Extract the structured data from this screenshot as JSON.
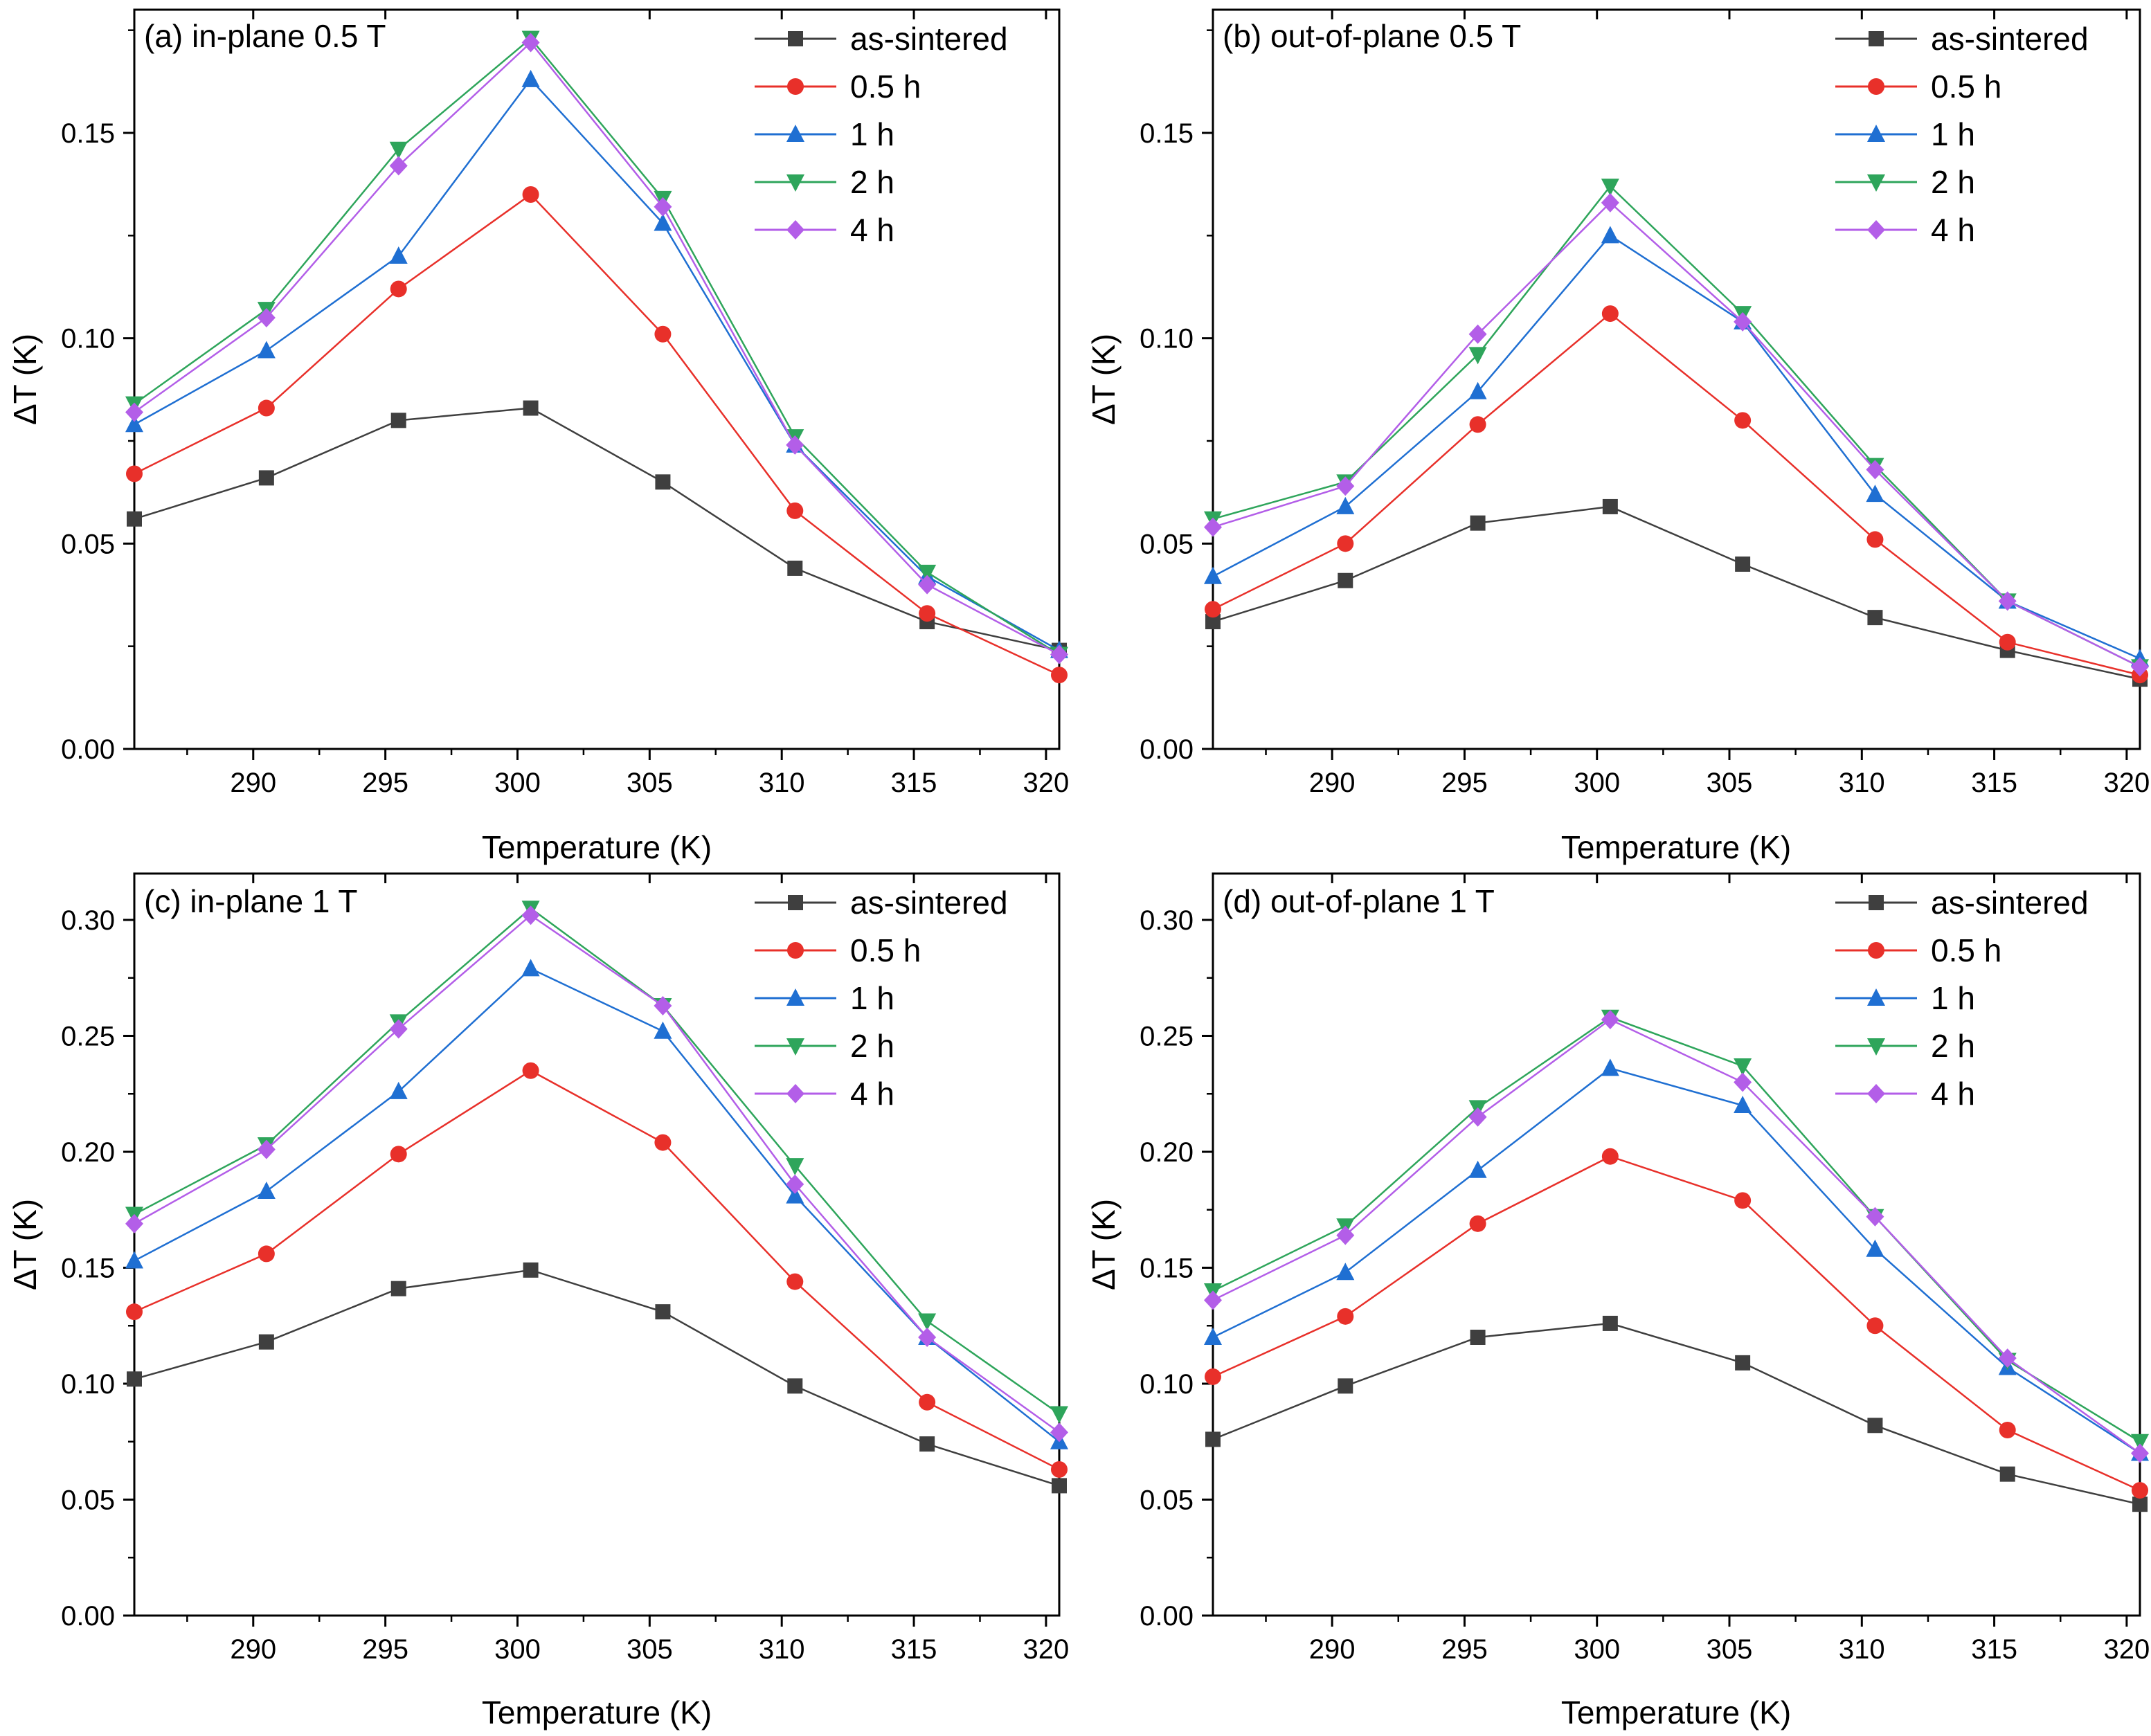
{
  "chart_data": [
    {
      "type": "line",
      "title": "(a) in-plane 0.5 T",
      "xlabel": "Temperature (K)",
      "ylabel": "ΔT (K)",
      "xlim": [
        285.5,
        320.5
      ],
      "ylim": [
        0,
        0.18
      ],
      "xticks": [
        290,
        295,
        300,
        305,
        310,
        315,
        320
      ],
      "xtick_labels": [
        "290",
        "295",
        "300",
        "305",
        "310",
        "315",
        "320"
      ],
      "yticks": [
        0,
        0.05,
        0.1,
        0.15
      ],
      "ytick_labels": [
        "0.00",
        "0.05",
        "0.10",
        "0.15"
      ],
      "legend_position": "top-right",
      "x": [
        285.5,
        290.5,
        295.5,
        300.5,
        305.5,
        310.5,
        315.5,
        320.5
      ],
      "series": [
        {
          "name": "as-sintered",
          "values": [
            0.056,
            0.066,
            0.08,
            0.083,
            0.065,
            0.044,
            0.031,
            0.024
          ]
        },
        {
          "name": "0.5 h",
          "values": [
            0.067,
            0.083,
            0.112,
            0.135,
            0.101,
            0.058,
            0.033,
            0.018
          ]
        },
        {
          "name": "1 h",
          "values": [
            0.079,
            0.097,
            0.12,
            0.163,
            0.128,
            0.074,
            0.042,
            0.024
          ]
        },
        {
          "name": "2 h",
          "values": [
            0.084,
            0.107,
            0.146,
            0.173,
            0.134,
            0.076,
            0.043,
            0.023
          ]
        },
        {
          "name": "4 h",
          "values": [
            0.082,
            0.105,
            0.142,
            0.172,
            0.132,
            0.074,
            0.04,
            0.023
          ]
        }
      ]
    },
    {
      "type": "line",
      "title": "(b) out-of-plane 0.5 T",
      "xlabel": "Temperature (K)",
      "ylabel": "ΔT (K)",
      "xlim": [
        285.5,
        320.5
      ],
      "ylim": [
        0,
        0.18
      ],
      "xticks": [
        290,
        295,
        300,
        305,
        310,
        315,
        320
      ],
      "xtick_labels": [
        "290",
        "295",
        "300",
        "305",
        "310",
        "315",
        "320"
      ],
      "yticks": [
        0,
        0.05,
        0.1,
        0.15
      ],
      "ytick_labels": [
        "0.00",
        "0.05",
        "0.10",
        "0.15"
      ],
      "legend_position": "top-right",
      "x": [
        285.5,
        290.5,
        295.5,
        300.5,
        305.5,
        310.5,
        315.5,
        320.5
      ],
      "series": [
        {
          "name": "as-sintered",
          "values": [
            0.031,
            0.041,
            0.055,
            0.059,
            0.045,
            0.032,
            0.024,
            0.017
          ]
        },
        {
          "name": "0.5 h",
          "values": [
            0.034,
            0.05,
            0.079,
            0.106,
            0.08,
            0.051,
            0.026,
            0.018
          ]
        },
        {
          "name": "1 h",
          "values": [
            0.042,
            0.059,
            0.087,
            0.125,
            0.104,
            0.062,
            0.036,
            0.022
          ]
        },
        {
          "name": "2 h",
          "values": [
            0.056,
            0.065,
            0.096,
            0.137,
            0.106,
            0.069,
            0.036,
            0.02
          ]
        },
        {
          "name": "4 h",
          "values": [
            0.054,
            0.064,
            0.101,
            0.133,
            0.104,
            0.068,
            0.036,
            0.02
          ]
        }
      ]
    },
    {
      "type": "line",
      "title": "(c) in-plane 1 T",
      "xlabel": "Temperature (K)",
      "ylabel": "ΔT (K)",
      "xlim": [
        285.5,
        320.5
      ],
      "ylim": [
        0,
        0.32
      ],
      "xticks": [
        290,
        295,
        300,
        305,
        310,
        315,
        320
      ],
      "xtick_labels": [
        "290",
        "295",
        "300",
        "305",
        "310",
        "315",
        "320"
      ],
      "yticks": [
        0,
        0.05,
        0.1,
        0.15,
        0.2,
        0.25,
        0.3
      ],
      "ytick_labels": [
        "0.00",
        "0.05",
        "0.10",
        "0.15",
        "0.20",
        "0.25",
        "0.30"
      ],
      "legend_position": "top-right",
      "x": [
        285.5,
        290.5,
        295.5,
        300.5,
        305.5,
        310.5,
        315.5,
        320.5
      ],
      "series": [
        {
          "name": "as-sintered",
          "values": [
            0.102,
            0.118,
            0.141,
            0.149,
            0.131,
            0.099,
            0.074,
            0.056
          ]
        },
        {
          "name": "0.5 h",
          "values": [
            0.131,
            0.156,
            0.199,
            0.235,
            0.204,
            0.144,
            0.092,
            0.063
          ]
        },
        {
          "name": "1 h",
          "values": [
            0.153,
            0.183,
            0.226,
            0.279,
            0.252,
            0.181,
            0.12,
            0.075
          ]
        },
        {
          "name": "2 h",
          "values": [
            0.173,
            0.203,
            0.256,
            0.305,
            0.263,
            0.194,
            0.127,
            0.087
          ]
        },
        {
          "name": "4 h",
          "values": [
            0.169,
            0.201,
            0.253,
            0.302,
            0.263,
            0.186,
            0.12,
            0.079
          ]
        }
      ]
    },
    {
      "type": "line",
      "title": "(d) out-of-plane 1 T",
      "xlabel": "Temperature (K)",
      "ylabel": "ΔT (K)",
      "xlim": [
        285.5,
        320.5
      ],
      "ylim": [
        0,
        0.32
      ],
      "xticks": [
        290,
        295,
        300,
        305,
        310,
        315,
        320
      ],
      "xtick_labels": [
        "290",
        "295",
        "300",
        "305",
        "310",
        "315",
        "320"
      ],
      "yticks": [
        0,
        0.05,
        0.1,
        0.15,
        0.2,
        0.25,
        0.3
      ],
      "ytick_labels": [
        "0.00",
        "0.05",
        "0.10",
        "0.15",
        "0.20",
        "0.25",
        "0.30"
      ],
      "legend_position": "top-right",
      "x": [
        285.5,
        290.5,
        295.5,
        300.5,
        305.5,
        310.5,
        315.5,
        320.5
      ],
      "series": [
        {
          "name": "as-sintered",
          "values": [
            0.076,
            0.099,
            0.12,
            0.126,
            0.109,
            0.082,
            0.061,
            0.048
          ]
        },
        {
          "name": "0.5 h",
          "values": [
            0.103,
            0.129,
            0.169,
            0.198,
            0.179,
            0.125,
            0.08,
            0.054
          ]
        },
        {
          "name": "1 h",
          "values": [
            0.12,
            0.148,
            0.192,
            0.236,
            0.22,
            0.158,
            0.107,
            0.07
          ]
        },
        {
          "name": "2 h",
          "values": [
            0.14,
            0.168,
            0.219,
            0.258,
            0.237,
            0.172,
            0.11,
            0.075
          ]
        },
        {
          "name": "4 h",
          "values": [
            0.136,
            0.164,
            0.215,
            0.257,
            0.23,
            0.172,
            0.111,
            0.07
          ]
        }
      ]
    }
  ],
  "series_style": [
    {
      "color": "#3f3f3f",
      "marker": "square"
    },
    {
      "color": "#e8302a",
      "marker": "circle"
    },
    {
      "color": "#1f6fd2",
      "marker": "triangle-up"
    },
    {
      "color": "#2ea55b",
      "marker": "triangle-down"
    },
    {
      "color": "#b35ee8",
      "marker": "diamond"
    }
  ]
}
